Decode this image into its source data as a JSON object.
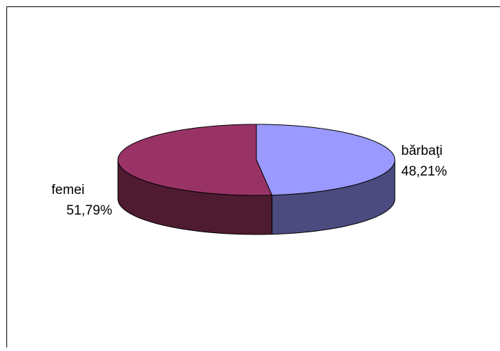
{
  "chart_data": {
    "type": "pie",
    "style": "3d",
    "title": "",
    "slices": [
      {
        "label": "bărbaţi",
        "value_label": "48,21%",
        "value": 48.21,
        "color": "#9999ff",
        "side_color": "#4b4b80"
      },
      {
        "label": "femei",
        "value_label": "51,79%",
        "value": 51.79,
        "color": "#993366",
        "side_color": "#4f1b30"
      }
    ],
    "legend": "none"
  }
}
